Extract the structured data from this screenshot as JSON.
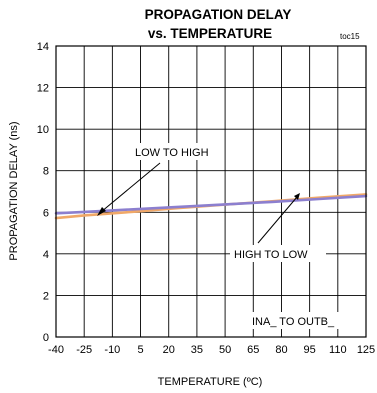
{
  "chart_data": {
    "type": "line",
    "title_line1": "PROPAGATION DELAY",
    "title_line2": "vs. TEMPERATURE",
    "tag": "toc15",
    "xlabel": "TEMPERATURE (ºC)",
    "ylabel": "PROPAGATION DELAY (ns)",
    "xlim": [
      -40,
      125
    ],
    "ylim": [
      0,
      14
    ],
    "x_ticks": [
      -40,
      -25,
      -10,
      5,
      20,
      35,
      50,
      65,
      80,
      95,
      110,
      125
    ],
    "y_ticks": [
      0,
      2,
      4,
      6,
      8,
      10,
      12,
      14
    ],
    "grid": true,
    "series": [
      {
        "name": "LOW TO HIGH",
        "color": "#f0a868",
        "x": [
          -40,
          -25,
          0,
          25,
          50,
          75,
          100,
          125
        ],
        "y": [
          5.72,
          5.85,
          6.02,
          6.2,
          6.37,
          6.53,
          6.7,
          6.86
        ]
      },
      {
        "name": "HIGH TO LOW",
        "color": "#8c7fcf",
        "x": [
          -40,
          -25,
          0,
          25,
          50,
          75,
          100,
          125
        ],
        "y": [
          5.95,
          6.02,
          6.14,
          6.26,
          6.38,
          6.5,
          6.64,
          6.78
        ]
      }
    ],
    "annotations": {
      "low_to_high": "LOW TO HIGH",
      "high_to_low": "HIGH TO LOW",
      "condition": "INA_ TO OUTB_"
    }
  }
}
